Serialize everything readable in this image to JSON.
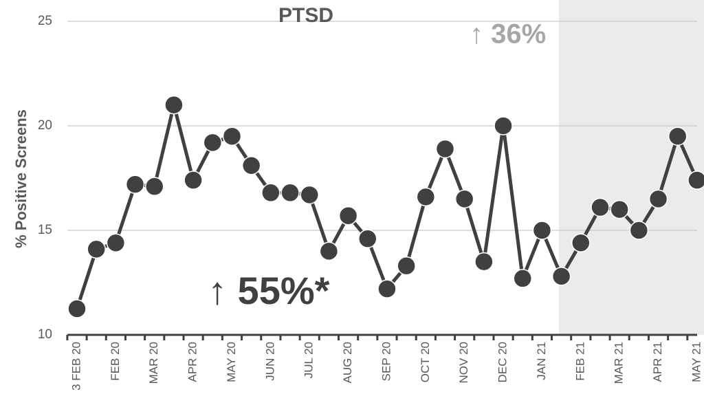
{
  "chart_data": {
    "type": "line",
    "title": "PTSD",
    "ylabel": "% Positive Screens",
    "categories": [
      "3 FEB 20",
      null,
      "FEB 20",
      null,
      "MAR 20",
      null,
      "APR 20",
      null,
      "MAY 20",
      null,
      "JUN 20",
      null,
      "JUL 20",
      null,
      "AUG 20",
      null,
      "SEP 20",
      null,
      "OCT 20",
      null,
      "NOV 20",
      null,
      "DEC 20",
      null,
      "JAN 21",
      null,
      "FEB 21",
      null,
      "MAR 21",
      null,
      "APR 21",
      null,
      "MAY 21"
    ],
    "series": [
      {
        "name": "PTSD",
        "color": "#404040",
        "values": [
          11.25,
          14.1,
          14.4,
          17.2,
          17.1,
          21.0,
          17.4,
          19.2,
          19.5,
          18.1,
          16.8,
          16.8,
          16.7,
          14.0,
          15.7,
          14.6,
          12.2,
          13.3,
          16.6,
          18.9,
          16.5,
          13.5,
          20.0,
          12.7,
          15.0,
          12.8,
          14.4,
          16.1,
          16.0,
          15.0,
          16.5,
          19.5,
          17.4
        ]
      }
    ],
    "ylim": [
      10,
      25
    ],
    "yticks": [
      10,
      15,
      20,
      25
    ],
    "grid": true,
    "annotations": [
      "↑ 36%",
      "↑ 55%*"
    ]
  }
}
